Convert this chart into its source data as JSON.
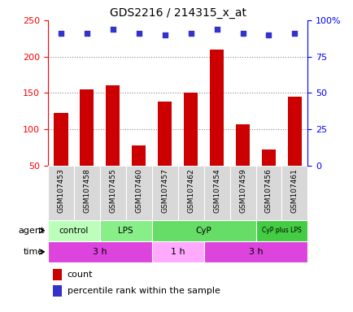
{
  "title": "GDS2216 / 214315_x_at",
  "samples": [
    "GSM107453",
    "GSM107458",
    "GSM107455",
    "GSM107460",
    "GSM107457",
    "GSM107462",
    "GSM107454",
    "GSM107459",
    "GSM107456",
    "GSM107461"
  ],
  "counts": [
    122,
    155,
    160,
    77,
    138,
    150,
    210,
    107,
    72,
    145
  ],
  "percentile_ranks_pct": [
    91,
    91,
    94,
    91,
    90,
    91,
    94,
    91,
    90,
    91
  ],
  "ylim_left": [
    50,
    250
  ],
  "ylim_right": [
    0,
    100
  ],
  "yticks_left": [
    50,
    100,
    150,
    200,
    250
  ],
  "yticks_right": [
    0,
    25,
    50,
    75,
    100
  ],
  "ytick_labels_right": [
    "0",
    "25",
    "50",
    "75",
    "100%"
  ],
  "bar_color": "#cc0000",
  "scatter_color": "#3333cc",
  "agent_groups": [
    {
      "label": "control",
      "start": 0,
      "end": 2,
      "color": "#bbffbb"
    },
    {
      "label": "LPS",
      "start": 2,
      "end": 4,
      "color": "#88ee88"
    },
    {
      "label": "CyP",
      "start": 4,
      "end": 8,
      "color": "#66dd66"
    },
    {
      "label": "CyP plus LPS",
      "start": 8,
      "end": 10,
      "color": "#44cc44"
    }
  ],
  "time_groups": [
    {
      "label": "3 h",
      "start": 0,
      "end": 4,
      "color": "#dd44dd"
    },
    {
      "label": "1 h",
      "start": 4,
      "end": 6,
      "color": "#ffaaff"
    },
    {
      "label": "3 h",
      "start": 6,
      "end": 10,
      "color": "#dd44dd"
    }
  ],
  "grid_yticks": [
    100,
    150,
    200
  ],
  "bar_width": 0.55,
  "title_fontsize": 10,
  "label_fontsize": 8,
  "tick_fontsize": 8,
  "sample_fontsize": 6.5
}
